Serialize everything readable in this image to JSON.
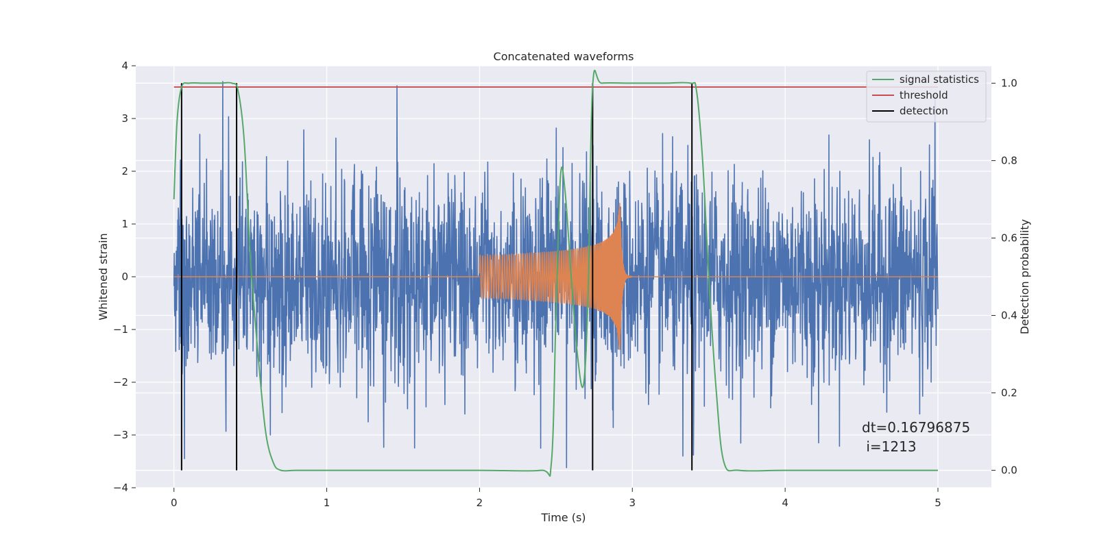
{
  "chart_data": {
    "type": "line",
    "title": "Concatenated waveforms",
    "xlabel": "Time (s)",
    "ylabel_left": "Whitened strain",
    "ylabel_right": "Detection probability",
    "xlim": [
      -0.25,
      5.35
    ],
    "ylim_left": [
      -4.0,
      4.0
    ],
    "ylim_right": [
      -0.045,
      1.045
    ],
    "x_ticks": [
      0,
      1,
      2,
      3,
      4,
      5
    ],
    "x_tick_labels": [
      "0",
      "1",
      "2",
      "3",
      "4",
      "5"
    ],
    "y_left_ticks": [
      -4,
      -3,
      -2,
      -1,
      0,
      1,
      2,
      3,
      4
    ],
    "y_left_tick_labels": [
      "−4",
      "−3",
      "−2",
      "−1",
      "0",
      "1",
      "2",
      "3",
      "4"
    ],
    "y_right_ticks": [
      0.0,
      0.2,
      0.4,
      0.6,
      0.8,
      1.0
    ],
    "y_right_tick_labels": [
      "0.0",
      "0.2",
      "0.4",
      "0.6",
      "0.8",
      "1.0"
    ],
    "grid": true,
    "legend_position": "top-right",
    "series": [
      {
        "name": "signal statistics",
        "axis": "right",
        "x": [
          0.0,
          0.02,
          0.05,
          0.1,
          0.2,
          0.3,
          0.38,
          0.42,
          0.46,
          0.5,
          0.55,
          0.6,
          0.65,
          0.7,
          0.8,
          1.0,
          1.5,
          2.0,
          2.4,
          2.47,
          2.5,
          2.53,
          2.56,
          2.6,
          2.64,
          2.68,
          2.71,
          2.74,
          2.8,
          3.0,
          3.2,
          3.38,
          3.42,
          3.46,
          3.5,
          3.55,
          3.6,
          3.7,
          4.0,
          4.5,
          5.0
        ],
        "y": [
          0.7,
          0.9,
          0.99,
          1.0,
          1.0,
          1.0,
          1.0,
          0.98,
          0.85,
          0.55,
          0.3,
          0.1,
          0.02,
          0.0,
          0.0,
          0.0,
          0.0,
          0.0,
          0.0,
          0.02,
          0.4,
          0.76,
          0.72,
          0.5,
          0.3,
          0.22,
          0.45,
          0.99,
          1.0,
          1.0,
          1.0,
          1.0,
          0.98,
          0.8,
          0.5,
          0.2,
          0.02,
          0.0,
          0.0,
          0.0,
          0.0
        ]
      },
      {
        "name": "threshold",
        "axis": "right",
        "x": [
          0.0,
          5.0
        ],
        "y": [
          0.99,
          0.99
        ]
      },
      {
        "name": "detection",
        "axis": "right",
        "x": [
          0.05,
          0.41,
          2.74,
          3.39
        ],
        "y_range": [
          0.0,
          1.0
        ]
      },
      {
        "name": "",
        "axis": "left",
        "description_type": "noise",
        "x_range": [
          0.0,
          5.0
        ],
        "band_typical": [
          -0.7,
          0.7
        ],
        "peaks": [
          [
            0.32,
            3.7
          ],
          [
            1.46,
            3.62
          ],
          [
            0.63,
            -3.0
          ],
          [
            0.07,
            -3.45
          ],
          [
            2.57,
            -3.62
          ],
          [
            3.33,
            -3.4
          ],
          [
            3.4,
            -3.38
          ],
          [
            4.22,
            -3.15
          ],
          [
            2.4,
            -3.25
          ],
          [
            4.88,
            -2.6
          ],
          [
            4.98,
            3.45
          ],
          [
            0.17,
            2.7
          ]
        ]
      },
      {
        "name": "",
        "axis": "left",
        "description_type": "chirp",
        "x_range": [
          2.0,
          3.0
        ],
        "merger_time": 2.92,
        "amplitude_start": 0.4,
        "amplitude_peak": 1.4
      }
    ],
    "annotation": {
      "line1": "dt=0.16796875",
      "line2": " i=1213"
    },
    "colors": {
      "background": "#eaeaf2",
      "grid": "#ffffff",
      "noise": "#4c72b0",
      "chirp": "#dd8452",
      "signal_statistics": "#55a868",
      "threshold": "#c44e52",
      "detection": "#000000"
    }
  }
}
